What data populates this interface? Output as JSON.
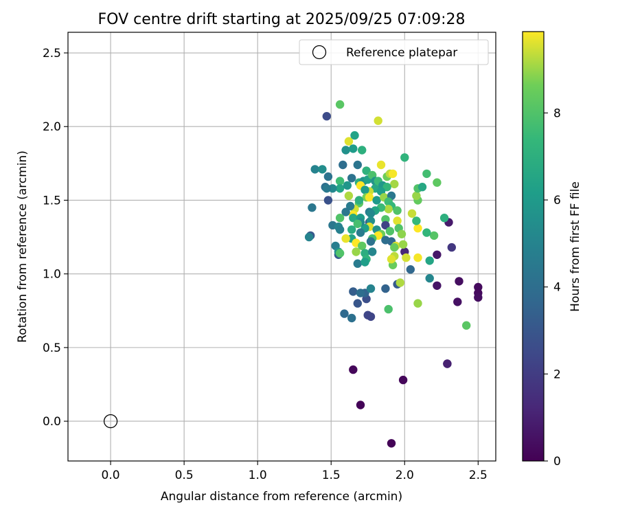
{
  "chart_data": {
    "type": "scatter",
    "title": "FOV centre drift starting at 2025/09/25 07:09:28",
    "xlabel": "Angular distance from reference (arcmin)",
    "ylabel": "Rotation from reference (arcmin)",
    "xlim": [
      -0.29,
      2.62
    ],
    "ylim": [
      -0.27,
      2.64
    ],
    "xticks": [
      "0.0",
      "0.5",
      "1.0",
      "1.5",
      "2.0",
      "2.5"
    ],
    "yticks": [
      "0.0",
      "0.5",
      "1.0",
      "1.5",
      "2.0",
      "2.5"
    ],
    "grid": true,
    "legend": {
      "position": "top-right",
      "entries": [
        {
          "label": "Reference platepar",
          "marker": "open-circle"
        }
      ]
    },
    "reference_point": {
      "x": 0.0,
      "y": 0.0
    },
    "colorbar": {
      "label": "Hours from first FF file",
      "min": 0,
      "max": 9.87,
      "ticks": [
        "0",
        "2",
        "4",
        "6",
        "8"
      ],
      "colormap": "viridis"
    },
    "points": [
      {
        "x": 1.91,
        "y": -0.15,
        "h": 0.1
      },
      {
        "x": 1.7,
        "y": 0.11,
        "h": 0.1
      },
      {
        "x": 1.99,
        "y": 0.28,
        "h": 0.2
      },
      {
        "x": 1.65,
        "y": 0.35,
        "h": 0.2
      },
      {
        "x": 2.29,
        "y": 0.39,
        "h": 1.5
      },
      {
        "x": 2.29,
        "y": 0.39,
        "h": 1.0
      },
      {
        "x": 2.5,
        "y": 0.91,
        "h": 0.3
      },
      {
        "x": 2.5,
        "y": 0.87,
        "h": 0.3
      },
      {
        "x": 2.5,
        "y": 0.84,
        "h": 0.4
      },
      {
        "x": 2.37,
        "y": 0.95,
        "h": 0.4
      },
      {
        "x": 2.36,
        "y": 0.81,
        "h": 0.5
      },
      {
        "x": 2.22,
        "y": 0.92,
        "h": 0.6
      },
      {
        "x": 2.22,
        "y": 1.13,
        "h": 0.7
      },
      {
        "x": 2.3,
        "y": 1.35,
        "h": 0.8
      },
      {
        "x": 2.32,
        "y": 1.18,
        "h": 1.8
      },
      {
        "x": 2.0,
        "y": 1.15,
        "h": 1.2
      },
      {
        "x": 1.47,
        "y": 2.07,
        "h": 2.6
      },
      {
        "x": 1.48,
        "y": 1.5,
        "h": 2.8
      },
      {
        "x": 1.36,
        "y": 1.26,
        "h": 3.1
      },
      {
        "x": 1.37,
        "y": 1.45,
        "h": 4.4
      },
      {
        "x": 1.59,
        "y": 0.73,
        "h": 3.8
      },
      {
        "x": 1.65,
        "y": 0.88,
        "h": 3.3
      },
      {
        "x": 1.68,
        "y": 0.8,
        "h": 3.0
      },
      {
        "x": 1.74,
        "y": 0.83,
        "h": 2.7
      },
      {
        "x": 1.75,
        "y": 0.72,
        "h": 2.4
      },
      {
        "x": 1.77,
        "y": 0.71,
        "h": 2.3
      },
      {
        "x": 1.73,
        "y": 0.87,
        "h": 3.6
      },
      {
        "x": 1.7,
        "y": 0.87,
        "h": 4.0
      },
      {
        "x": 1.77,
        "y": 0.9,
        "h": 5.0
      },
      {
        "x": 1.64,
        "y": 0.7,
        "h": 4.1
      },
      {
        "x": 1.87,
        "y": 0.9,
        "h": 3.5
      },
      {
        "x": 1.95,
        "y": 0.93,
        "h": 3.2
      },
      {
        "x": 2.04,
        "y": 1.03,
        "h": 3.7
      },
      {
        "x": 2.17,
        "y": 0.97,
        "h": 5.1
      },
      {
        "x": 1.89,
        "y": 0.76,
        "h": 7.9
      },
      {
        "x": 2.42,
        "y": 0.65,
        "h": 8.2
      },
      {
        "x": 2.09,
        "y": 0.8,
        "h": 9.0
      },
      {
        "x": 1.97,
        "y": 0.94,
        "h": 9.2
      },
      {
        "x": 1.92,
        "y": 1.06,
        "h": 8.5
      },
      {
        "x": 1.93,
        "y": 1.12,
        "h": 9.3
      },
      {
        "x": 1.91,
        "y": 1.1,
        "h": 9.6
      },
      {
        "x": 2.01,
        "y": 1.11,
        "h": 9.5
      },
      {
        "x": 2.09,
        "y": 1.11,
        "h": 9.8
      },
      {
        "x": 2.17,
        "y": 1.09,
        "h": 6.5
      },
      {
        "x": 2.2,
        "y": 1.26,
        "h": 8.1
      },
      {
        "x": 2.15,
        "y": 1.28,
        "h": 7.3
      },
      {
        "x": 2.09,
        "y": 1.31,
        "h": 9.9
      },
      {
        "x": 2.08,
        "y": 1.36,
        "h": 7.4
      },
      {
        "x": 2.05,
        "y": 1.41,
        "h": 9.4
      },
      {
        "x": 2.09,
        "y": 1.5,
        "h": 8.4
      },
      {
        "x": 2.08,
        "y": 1.53,
        "h": 9.0
      },
      {
        "x": 2.09,
        "y": 1.58,
        "h": 8.0
      },
      {
        "x": 2.12,
        "y": 1.59,
        "h": 6.6
      },
      {
        "x": 2.15,
        "y": 1.68,
        "h": 7.7
      },
      {
        "x": 2.22,
        "y": 1.62,
        "h": 8.3
      },
      {
        "x": 2.27,
        "y": 1.38,
        "h": 7.0
      },
      {
        "x": 2.0,
        "y": 1.79,
        "h": 7.2
      },
      {
        "x": 1.82,
        "y": 2.04,
        "h": 9.5
      },
      {
        "x": 1.56,
        "y": 2.15,
        "h": 8.2
      },
      {
        "x": 1.62,
        "y": 1.9,
        "h": 9.6
      },
      {
        "x": 1.66,
        "y": 1.94,
        "h": 6.4
      },
      {
        "x": 1.6,
        "y": 1.84,
        "h": 5.6
      },
      {
        "x": 1.65,
        "y": 1.85,
        "h": 6.1
      },
      {
        "x": 1.71,
        "y": 1.84,
        "h": 7.0
      },
      {
        "x": 1.58,
        "y": 1.74,
        "h": 4.0
      },
      {
        "x": 1.68,
        "y": 1.74,
        "h": 4.3
      },
      {
        "x": 1.84,
        "y": 1.74,
        "h": 9.7
      },
      {
        "x": 1.39,
        "y": 1.71,
        "h": 5.0
      },
      {
        "x": 1.44,
        "y": 1.71,
        "h": 5.4
      },
      {
        "x": 1.48,
        "y": 1.66,
        "h": 4.2
      },
      {
        "x": 1.56,
        "y": 1.63,
        "h": 7.6
      },
      {
        "x": 1.56,
        "y": 1.58,
        "h": 6.5
      },
      {
        "x": 1.51,
        "y": 1.58,
        "h": 5.2
      },
      {
        "x": 1.46,
        "y": 1.59,
        "h": 4.0
      },
      {
        "x": 1.47,
        "y": 1.58,
        "h": 4.5
      },
      {
        "x": 1.61,
        "y": 1.6,
        "h": 5.8
      },
      {
        "x": 1.64,
        "y": 1.65,
        "h": 4.2
      },
      {
        "x": 1.62,
        "y": 1.53,
        "h": 9.2
      },
      {
        "x": 1.69,
        "y": 1.62,
        "h": 6.9
      },
      {
        "x": 1.72,
        "y": 1.63,
        "h": 5.6
      },
      {
        "x": 1.7,
        "y": 1.6,
        "h": 9.9
      },
      {
        "x": 1.74,
        "y": 1.7,
        "h": 7.1
      },
      {
        "x": 1.75,
        "y": 1.64,
        "h": 6.3
      },
      {
        "x": 1.78,
        "y": 1.67,
        "h": 7.9
      },
      {
        "x": 1.8,
        "y": 1.63,
        "h": 5.7
      },
      {
        "x": 1.8,
        "y": 1.58,
        "h": 6.6
      },
      {
        "x": 1.82,
        "y": 1.63,
        "h": 7.5
      },
      {
        "x": 1.85,
        "y": 1.6,
        "h": 5.9
      },
      {
        "x": 1.88,
        "y": 1.66,
        "h": 8.6
      },
      {
        "x": 1.9,
        "y": 1.68,
        "h": 9.3
      },
      {
        "x": 1.92,
        "y": 1.68,
        "h": 9.8
      },
      {
        "x": 1.93,
        "y": 1.61,
        "h": 9.1
      },
      {
        "x": 1.88,
        "y": 1.59,
        "h": 7.3
      },
      {
        "x": 1.84,
        "y": 1.56,
        "h": 6.2
      },
      {
        "x": 1.76,
        "y": 1.56,
        "h": 9.4
      },
      {
        "x": 1.73,
        "y": 1.57,
        "h": 6.1
      },
      {
        "x": 1.74,
        "y": 1.52,
        "h": 8.7
      },
      {
        "x": 1.76,
        "y": 1.52,
        "h": 9.8
      },
      {
        "x": 1.81,
        "y": 1.5,
        "h": 6.0
      },
      {
        "x": 1.86,
        "y": 1.52,
        "h": 9.0
      },
      {
        "x": 1.91,
        "y": 1.53,
        "h": 4.4
      },
      {
        "x": 1.89,
        "y": 1.49,
        "h": 7.6
      },
      {
        "x": 1.91,
        "y": 1.46,
        "h": 7.4
      },
      {
        "x": 1.95,
        "y": 1.43,
        "h": 8.0
      },
      {
        "x": 1.89,
        "y": 1.44,
        "h": 9.2
      },
      {
        "x": 1.84,
        "y": 1.45,
        "h": 7.5
      },
      {
        "x": 1.8,
        "y": 1.43,
        "h": 6.5
      },
      {
        "x": 1.76,
        "y": 1.42,
        "h": 4.6
      },
      {
        "x": 1.77,
        "y": 1.41,
        "h": 5.2
      },
      {
        "x": 1.69,
        "y": 1.48,
        "h": 8.2
      },
      {
        "x": 1.69,
        "y": 1.5,
        "h": 7.0
      },
      {
        "x": 1.66,
        "y": 1.44,
        "h": 9.5
      },
      {
        "x": 1.65,
        "y": 1.4,
        "h": 9.9
      },
      {
        "x": 1.63,
        "y": 1.46,
        "h": 4.6
      },
      {
        "x": 1.6,
        "y": 1.42,
        "h": 4.4
      },
      {
        "x": 1.56,
        "y": 1.38,
        "h": 8.0
      },
      {
        "x": 1.51,
        "y": 1.33,
        "h": 4.4
      },
      {
        "x": 1.55,
        "y": 1.32,
        "h": 5.0
      },
      {
        "x": 1.56,
        "y": 1.3,
        "h": 4.8
      },
      {
        "x": 1.65,
        "y": 1.38,
        "h": 6.7
      },
      {
        "x": 1.7,
        "y": 1.38,
        "h": 6.1
      },
      {
        "x": 1.76,
        "y": 1.35,
        "h": 3.2
      },
      {
        "x": 1.77,
        "y": 1.36,
        "h": 5.5
      },
      {
        "x": 1.76,
        "y": 1.32,
        "h": 9.6
      },
      {
        "x": 1.81,
        "y": 1.3,
        "h": 5.6
      },
      {
        "x": 1.87,
        "y": 1.37,
        "h": 8.0
      },
      {
        "x": 1.87,
        "y": 1.33,
        "h": 2.2
      },
      {
        "x": 1.84,
        "y": 1.27,
        "h": 8.6
      },
      {
        "x": 1.9,
        "y": 1.29,
        "h": 8.0
      },
      {
        "x": 1.95,
        "y": 1.36,
        "h": 9.6
      },
      {
        "x": 1.96,
        "y": 1.31,
        "h": 8.0
      },
      {
        "x": 1.98,
        "y": 1.27,
        "h": 8.9
      },
      {
        "x": 1.91,
        "y": 1.22,
        "h": 3.7
      },
      {
        "x": 1.87,
        "y": 1.23,
        "h": 4.0
      },
      {
        "x": 1.82,
        "y": 1.26,
        "h": 9.9
      },
      {
        "x": 1.78,
        "y": 1.24,
        "h": 7.8
      },
      {
        "x": 1.77,
        "y": 1.22,
        "h": 4.2
      },
      {
        "x": 1.73,
        "y": 1.31,
        "h": 6.2
      },
      {
        "x": 1.7,
        "y": 1.35,
        "h": 5.3
      },
      {
        "x": 1.7,
        "y": 1.28,
        "h": 4.6
      },
      {
        "x": 1.68,
        "y": 1.34,
        "h": 7.8
      },
      {
        "x": 1.64,
        "y": 1.3,
        "h": 6.8
      },
      {
        "x": 1.64,
        "y": 1.24,
        "h": 6.4
      },
      {
        "x": 1.6,
        "y": 1.24,
        "h": 9.7
      },
      {
        "x": 1.53,
        "y": 1.19,
        "h": 4.7
      },
      {
        "x": 1.55,
        "y": 1.13,
        "h": 3.2
      },
      {
        "x": 1.55,
        "y": 1.15,
        "h": 5.5
      },
      {
        "x": 1.56,
        "y": 1.14,
        "h": 8.0
      },
      {
        "x": 1.67,
        "y": 1.15,
        "h": 9.0
      },
      {
        "x": 1.67,
        "y": 1.21,
        "h": 9.9
      },
      {
        "x": 1.71,
        "y": 1.19,
        "h": 8.3
      },
      {
        "x": 1.73,
        "y": 1.14,
        "h": 6.9
      },
      {
        "x": 1.74,
        "y": 1.1,
        "h": 7.2
      },
      {
        "x": 1.78,
        "y": 1.15,
        "h": 5.1
      },
      {
        "x": 1.68,
        "y": 1.07,
        "h": 4.6
      },
      {
        "x": 1.73,
        "y": 1.08,
        "h": 6.2
      },
      {
        "x": 1.94,
        "y": 1.19,
        "h": 9.6
      },
      {
        "x": 1.99,
        "y": 1.2,
        "h": 9.0
      },
      {
        "x": 1.93,
        "y": 1.18,
        "h": 8.5
      },
      {
        "x": 1.35,
        "y": 1.25,
        "h": 5.0
      }
    ]
  }
}
